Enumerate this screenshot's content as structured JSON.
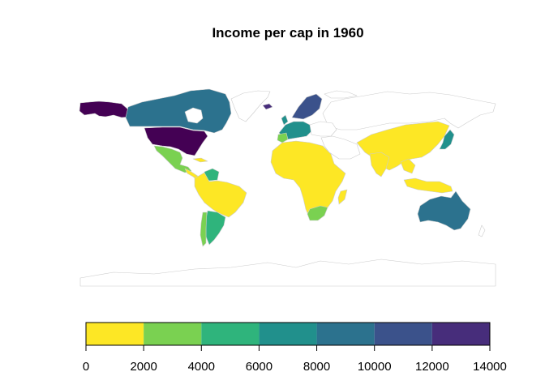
{
  "title": "Income per cap in 1960",
  "legend": {
    "breaks": [
      0,
      2000,
      4000,
      6000,
      8000,
      10000,
      12000,
      14000
    ],
    "tick_labels": [
      "0",
      "2000",
      "4000",
      "6000",
      "8000",
      "10000",
      "12000",
      "14000"
    ],
    "colors": [
      "#FDE725",
      "#7AD151",
      "#2FB47C",
      "#21908C",
      "#2C728E",
      "#3B528B",
      "#472D7B",
      "#440154"
    ]
  },
  "colors": {
    "no_data_fill": "#FFFFFF",
    "border": "#CCCCCC",
    "bin_0_2000": "#FDE725",
    "bin_2000_4000": "#7AD151",
    "bin_4000_6000": "#2FB47C",
    "bin_6000_8000": "#21908C",
    "bin_8000_10000": "#2C728E",
    "bin_10000_12000": "#3B528B",
    "bin_12000_14000": "#440154"
  },
  "regions": [
    {
      "name": "Alaska",
      "bin": "12000-14000"
    },
    {
      "name": "United States",
      "bin": "12000-14000"
    },
    {
      "name": "Canada",
      "bin": "8000-10000"
    },
    {
      "name": "Mexico",
      "bin": "2000-4000"
    },
    {
      "name": "Central America",
      "bin": "0-2000"
    },
    {
      "name": "Venezuela",
      "bin": "4000-6000"
    },
    {
      "name": "South America",
      "bin": "0-2000"
    },
    {
      "name": "Argentina",
      "bin": "4000-6000"
    },
    {
      "name": "Chile",
      "bin": "2000-4000"
    },
    {
      "name": "Western Europe",
      "bin": "6000-8000"
    },
    {
      "name": "Scandinavia",
      "bin": "10000-12000"
    },
    {
      "name": "Iceland",
      "bin": "10000-12000"
    },
    {
      "name": "Africa",
      "bin": "0-2000"
    },
    {
      "name": "South Africa",
      "bin": "2000-4000"
    },
    {
      "name": "Asia",
      "bin": "0-2000"
    },
    {
      "name": "Japan",
      "bin": "6000-8000"
    },
    {
      "name": "Australia",
      "bin": "8000-10000"
    },
    {
      "name": "Russia",
      "bin": "no data"
    },
    {
      "name": "Greenland",
      "bin": "no data"
    },
    {
      "name": "Antarctica",
      "bin": "no data"
    }
  ]
}
